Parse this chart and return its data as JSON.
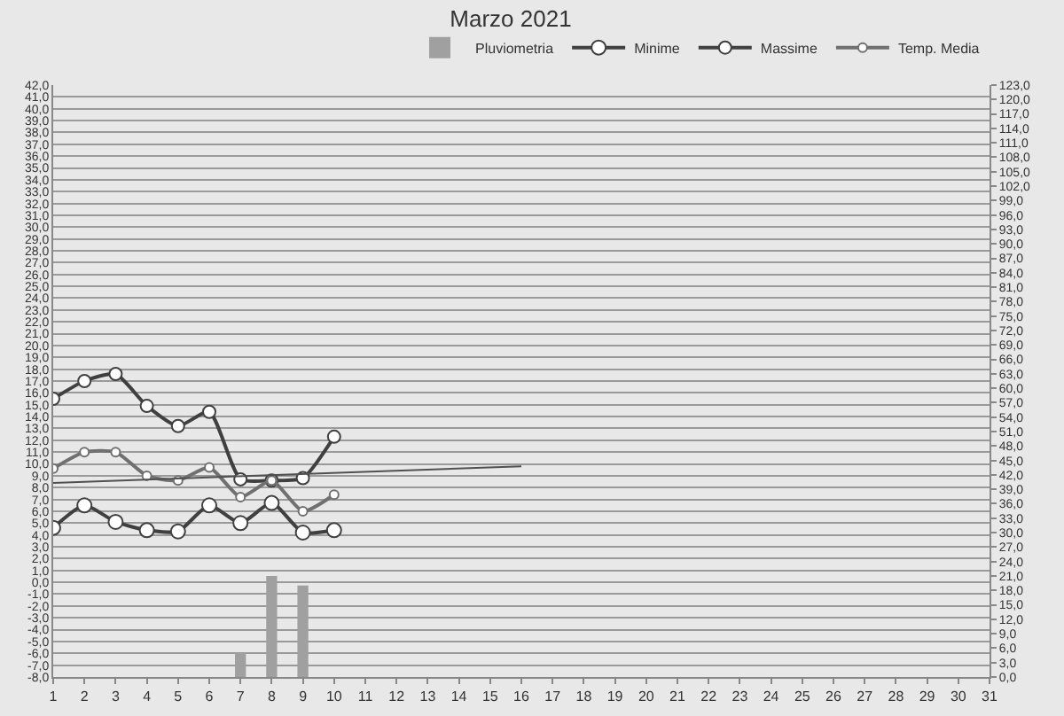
{
  "chart_data": {
    "type": "line",
    "title": "Marzo 2021",
    "x": [
      1,
      2,
      3,
      4,
      5,
      6,
      7,
      8,
      9,
      10
    ],
    "xlim": [
      1,
      31
    ],
    "xticks": [
      1,
      2,
      3,
      4,
      5,
      6,
      7,
      8,
      9,
      10,
      11,
      12,
      13,
      14,
      15,
      16,
      17,
      18,
      19,
      20,
      21,
      22,
      23,
      24,
      25,
      26,
      27,
      28,
      29,
      30,
      31
    ],
    "ylim": [
      -8,
      42
    ],
    "yticks": [
      {
        "value": -8,
        "label": "-8,0"
      },
      {
        "value": -7,
        "label": "-7,0"
      },
      {
        "value": -6,
        "label": "-6,0"
      },
      {
        "value": -5,
        "label": "-5,0"
      },
      {
        "value": -4,
        "label": "-4,0"
      },
      {
        "value": -3,
        "label": "-3,0"
      },
      {
        "value": -2,
        "label": "-2,0"
      },
      {
        "value": -1,
        "label": "-1,0"
      },
      {
        "value": 0,
        "label": "0,0"
      },
      {
        "value": 1,
        "label": "1,0"
      },
      {
        "value": 2,
        "label": "2,0"
      },
      {
        "value": 3,
        "label": "3,0"
      },
      {
        "value": 4,
        "label": "4,0"
      },
      {
        "value": 5,
        "label": "5,0"
      },
      {
        "value": 6,
        "label": "6,0"
      },
      {
        "value": 7,
        "label": "7,0"
      },
      {
        "value": 8,
        "label": "8,0"
      },
      {
        "value": 9,
        "label": "9,0"
      },
      {
        "value": 10,
        "label": "10,0"
      },
      {
        "value": 11,
        "label": "11,0"
      },
      {
        "value": 12,
        "label": "12,0"
      },
      {
        "value": 13,
        "label": "13,0"
      },
      {
        "value": 14,
        "label": "14,0"
      },
      {
        "value": 15,
        "label": "15,0"
      },
      {
        "value": 16,
        "label": "16,0"
      },
      {
        "value": 17,
        "label": "17,0"
      },
      {
        "value": 18,
        "label": "18,0"
      },
      {
        "value": 19,
        "label": "19,0"
      },
      {
        "value": 20,
        "label": "20,0"
      },
      {
        "value": 21,
        "label": "21,0"
      },
      {
        "value": 22,
        "label": "22,0"
      },
      {
        "value": 23,
        "label": "23,0"
      },
      {
        "value": 24,
        "label": "24,0"
      },
      {
        "value": 25,
        "label": "25,0"
      },
      {
        "value": 26,
        "label": "26,0"
      },
      {
        "value": 27,
        "label": "27,0"
      },
      {
        "value": 28,
        "label": "28,0"
      },
      {
        "value": 29,
        "label": "29,0"
      },
      {
        "value": 30,
        "label": "30,0"
      },
      {
        "value": 31,
        "label": "31,0"
      },
      {
        "value": 32,
        "label": "32,0"
      },
      {
        "value": 33,
        "label": "33,0"
      },
      {
        "value": 34,
        "label": "34,0"
      },
      {
        "value": 35,
        "label": "35,0"
      },
      {
        "value": 36,
        "label": "36,0"
      },
      {
        "value": 37,
        "label": "37,0"
      },
      {
        "value": 38,
        "label": "38,0"
      },
      {
        "value": 39,
        "label": "39,0"
      },
      {
        "value": 40,
        "label": "40,0"
      },
      {
        "value": 41,
        "label": "41,0"
      },
      {
        "value": 42,
        "label": "42,0"
      }
    ],
    "y2lim": [
      0,
      123
    ],
    "y2ticks": [
      {
        "value": 0,
        "label": "0,0"
      },
      {
        "value": 3,
        "label": "3,0"
      },
      {
        "value": 6,
        "label": "6,0"
      },
      {
        "value": 9,
        "label": "9,0"
      },
      {
        "value": 12,
        "label": "12,0"
      },
      {
        "value": 15,
        "label": "15,0"
      },
      {
        "value": 18,
        "label": "18,0"
      },
      {
        "value": 21,
        "label": "21,0"
      },
      {
        "value": 24,
        "label": "24,0"
      },
      {
        "value": 27,
        "label": "27,0"
      },
      {
        "value": 30,
        "label": "30,0"
      },
      {
        "value": 33,
        "label": "33,0"
      },
      {
        "value": 36,
        "label": "36,0"
      },
      {
        "value": 39,
        "label": "39,0"
      },
      {
        "value": 42,
        "label": "42,0"
      },
      {
        "value": 45,
        "label": "45,0"
      },
      {
        "value": 48,
        "label": "48,0"
      },
      {
        "value": 51,
        "label": "51,0"
      },
      {
        "value": 54,
        "label": "54,0"
      },
      {
        "value": 57,
        "label": "57,0"
      },
      {
        "value": 60,
        "label": "60,0"
      },
      {
        "value": 63,
        "label": "63,0"
      },
      {
        "value": 66,
        "label": "66,0"
      },
      {
        "value": 69,
        "label": "69,0"
      },
      {
        "value": 72,
        "label": "72,0"
      },
      {
        "value": 75,
        "label": "75,0"
      },
      {
        "value": 78,
        "label": "78,0"
      },
      {
        "value": 81,
        "label": "81,0"
      },
      {
        "value": 84,
        "label": "84,0"
      },
      {
        "value": 87,
        "label": "87,0"
      },
      {
        "value": 90,
        "label": "90,0"
      },
      {
        "value": 93,
        "label": "93,0"
      },
      {
        "value": 96,
        "label": "96,0"
      },
      {
        "value": 99,
        "label": "99,0"
      },
      {
        "value": 102,
        "label": "102,0"
      },
      {
        "value": 105,
        "label": "105,0"
      },
      {
        "value": 108,
        "label": "108,0"
      },
      {
        "value": 111,
        "label": "111,0"
      },
      {
        "value": 114,
        "label": "114,0"
      },
      {
        "value": 117,
        "label": "117,0"
      },
      {
        "value": 120,
        "label": "120,0"
      },
      {
        "value": 123,
        "label": "123,0"
      }
    ],
    "grid": "y",
    "legend": "top right",
    "marker": "circle",
    "line_style": "solid",
    "series": [
      {
        "name": "Pluviometria",
        "type": "bar",
        "axis": "y2",
        "color": "#a0a0a0",
        "x": [
          7,
          8,
          9
        ],
        "values": [
          5,
          21,
          19
        ]
      },
      {
        "name": "Minime",
        "color": "#404040",
        "values": [
          4.6,
          6.5,
          5.1,
          4.4,
          4.3,
          6.5,
          5.0,
          6.7,
          4.2,
          4.4
        ]
      },
      {
        "name": "Massime",
        "color": "#404040",
        "values": [
          15.5,
          17.0,
          17.6,
          14.9,
          13.2,
          14.4,
          8.7,
          8.6,
          8.8,
          12.3
        ]
      },
      {
        "name": "Temp. Media",
        "color": "#707070",
        "values": [
          9.6,
          11.0,
          11.0,
          9.0,
          8.6,
          9.7,
          7.2,
          8.6,
          6.0,
          7.4
        ]
      },
      {
        "type": "line",
        "color": "#505050",
        "marker": "none",
        "x": [
          1,
          16
        ],
        "values": [
          8.4,
          9.8
        ]
      }
    ]
  }
}
